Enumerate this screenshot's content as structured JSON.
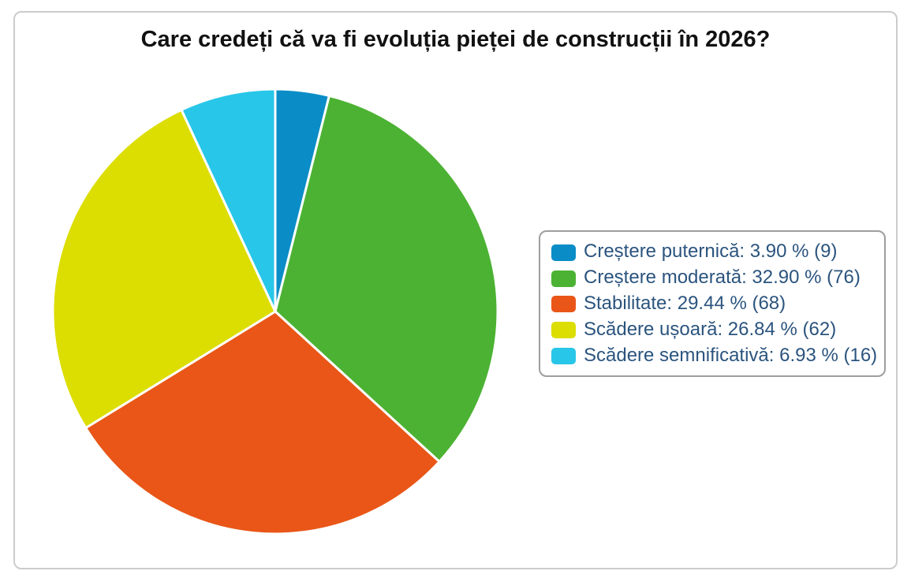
{
  "chart_data": {
    "type": "pie",
    "title": "Care credeți că va fi evoluția pieței de construcții în 2026?",
    "legend_position": "right",
    "start_angle_deg": 0,
    "direction": "clockwise",
    "slice_border_color": "#ffffff",
    "slices": [
      {
        "label": "Creștere puternică",
        "percent": 3.9,
        "count": 9,
        "color": "#0a8dc7",
        "legend_label": "Creștere puternică: 3.90 % (9)"
      },
      {
        "label": "Creștere moderată",
        "percent": 32.9,
        "count": 76,
        "color": "#4cb233",
        "legend_label": "Creștere moderată: 32.90 % (76)"
      },
      {
        "label": "Stabilitate",
        "percent": 29.44,
        "count": 68,
        "color": "#e95617",
        "legend_label": "Stabilitate: 29.44 % (68)"
      },
      {
        "label": "Scădere ușoară",
        "percent": 26.84,
        "count": 62,
        "color": "#dcdd00",
        "legend_label": "Scădere ușoară: 26.84 % (62)"
      },
      {
        "label": "Scădere semnificativă",
        "percent": 6.93,
        "count": 16,
        "color": "#28c6e8",
        "legend_label": "Scădere semnificativă: 6.93 % (16)"
      }
    ]
  },
  "colors": {
    "legend_text": "#2b547e",
    "title_text": "#111111",
    "frame_border": "#cccccc",
    "legend_border": "#9e9e9e"
  }
}
